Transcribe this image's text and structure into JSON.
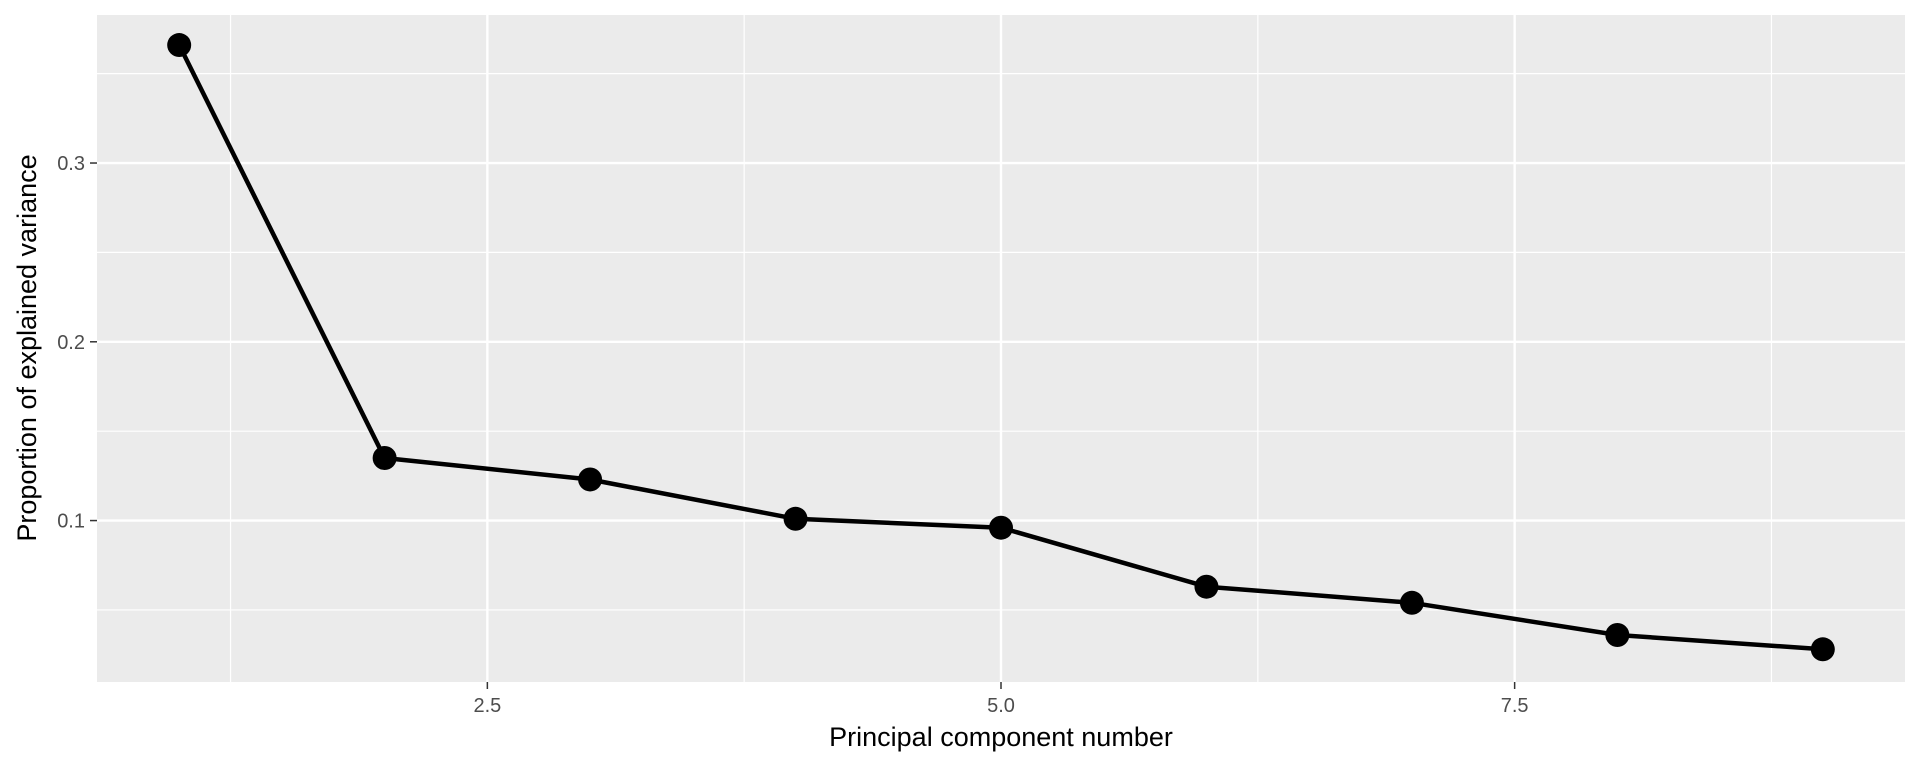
{
  "chart_data": {
    "type": "line",
    "xlabel": "Principal component number",
    "ylabel": "Proportion of explained variance",
    "x": [
      1,
      2,
      3,
      4,
      5,
      6,
      7,
      8,
      9
    ],
    "series": [
      {
        "values": [
          0.366,
          0.135,
          0.123,
          0.101,
          0.096,
          0.063,
          0.054,
          0.036,
          0.028
        ]
      }
    ],
    "xlim": [
      0.6,
      9.4
    ],
    "ylim": [
      0.0097,
      0.3828
    ],
    "x_ticks": [
      2.5,
      5.0,
      7.5
    ],
    "x_tick_labels": [
      "2.5",
      "5.0",
      "7.5"
    ],
    "x_minor_ticks": [
      1.25,
      3.75,
      6.25,
      8.75
    ],
    "y_ticks": [
      0.1,
      0.2,
      0.3
    ],
    "y_tick_labels": [
      "0.1",
      "0.2",
      "0.3"
    ],
    "y_minor_ticks": [
      0.05,
      0.15,
      0.25,
      0.35
    ],
    "grid": true,
    "markers": true,
    "colors": {
      "panel": "#ebebeb",
      "grid": "#ffffff",
      "series": "#000000"
    }
  }
}
